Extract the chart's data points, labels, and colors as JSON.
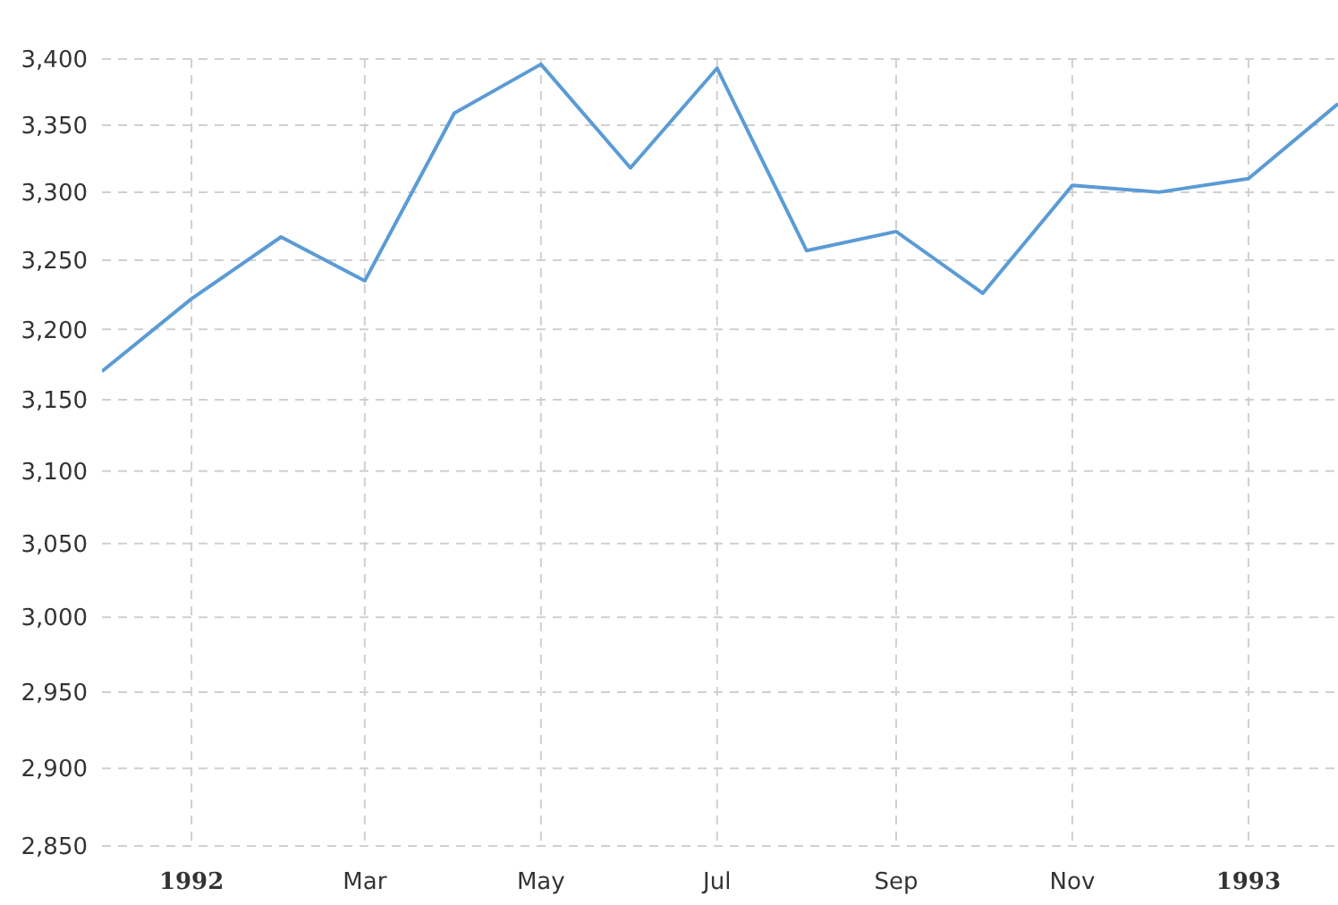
{
  "chart_data": {
    "type": "line",
    "x": [
      "1991-12",
      "1992-01",
      "1992-02",
      "1992-03",
      "1992-04",
      "1992-05",
      "1992-06",
      "1992-07",
      "1992-08",
      "1992-09",
      "1992-10",
      "1992-11",
      "1992-12",
      "1993-01",
      "1993-02"
    ],
    "series": [
      {
        "color": "#5b9bd5",
        "values": [
          3170,
          3222,
          3267,
          3235,
          3359,
          3396,
          3318,
          3393,
          3257,
          3271,
          3226,
          3305,
          3300,
          3310,
          3366
        ]
      }
    ],
    "xlim": [
      "1991-12",
      "1993-02"
    ],
    "xticks": [
      {
        "value": "1992-01",
        "label": "1992"
      },
      {
        "value": "1992-03",
        "label": "Mar"
      },
      {
        "value": "1992-05",
        "label": "May"
      },
      {
        "value": "1992-07",
        "label": "Jul"
      },
      {
        "value": "1992-09",
        "label": "Sep"
      },
      {
        "value": "1992-11",
        "label": "Nov"
      },
      {
        "value": "1993-01",
        "label": "1993"
      }
    ],
    "ylim": [
      2850,
      3400
    ],
    "yticks": [
      {
        "value": 2850,
        "label": "2,850"
      },
      {
        "value": 2900,
        "label": "2,900"
      },
      {
        "value": 2950,
        "label": "2,950"
      },
      {
        "value": 3000,
        "label": "3,000"
      },
      {
        "value": 3050,
        "label": "3,050"
      },
      {
        "value": 3100,
        "label": "3,100"
      },
      {
        "value": 3150,
        "label": "3,150"
      },
      {
        "value": 3200,
        "label": "3,200"
      },
      {
        "value": 3250,
        "label": "3,250"
      },
      {
        "value": 3300,
        "label": "3,300"
      },
      {
        "value": 3350,
        "label": "3,350"
      },
      {
        "value": 3400,
        "label": "3,400"
      }
    ],
    "log": "y",
    "grid": true,
    "legend": false
  }
}
